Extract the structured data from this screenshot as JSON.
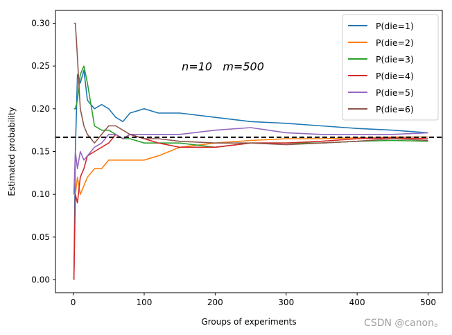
{
  "chart_data": {
    "type": "line",
    "xlabel": "Groups of experiments",
    "ylabel": "Estimated probability",
    "xlim": [
      -25,
      520
    ],
    "ylim": [
      -0.015,
      0.315
    ],
    "x_ticks": [
      0,
      100,
      200,
      300,
      400,
      500
    ],
    "y_ticks": [
      0.0,
      0.05,
      0.1,
      0.15,
      0.2,
      0.25,
      0.3
    ],
    "x_tick_labels": [
      "0",
      "100",
      "200",
      "300",
      "400",
      "500"
    ],
    "y_tick_labels": [
      "0.00",
      "0.05",
      "0.10",
      "0.15",
      "0.20",
      "0.25",
      "0.30"
    ],
    "reference_line": {
      "y": 0.1667,
      "style": "dashed",
      "color": "#000000"
    },
    "annotation": {
      "text": "n=10   m=500",
      "x": 150,
      "y": 0.245
    },
    "legend_position": "upper-right",
    "grid": false,
    "watermark": "CSDN @canon。",
    "series": [
      {
        "name": "P(die=1)",
        "color": "#1f77b4",
        "x": [
          1,
          3,
          6,
          10,
          15,
          20,
          30,
          40,
          50,
          60,
          70,
          80,
          100,
          120,
          150,
          200,
          250,
          300,
          350,
          400,
          450,
          500
        ],
        "y": [
          0.0,
          0.15,
          0.24,
          0.23,
          0.245,
          0.21,
          0.2,
          0.205,
          0.2,
          0.19,
          0.185,
          0.195,
          0.2,
          0.195,
          0.195,
          0.19,
          0.185,
          0.183,
          0.18,
          0.177,
          0.175,
          0.172
        ]
      },
      {
        "name": "P(die=2)",
        "color": "#ff7f0e",
        "x": [
          1,
          3,
          6,
          10,
          15,
          20,
          30,
          40,
          50,
          60,
          70,
          80,
          100,
          120,
          150,
          200,
          250,
          300,
          350,
          400,
          450,
          500
        ],
        "y": [
          0.1,
          0.1,
          0.12,
          0.1,
          0.11,
          0.12,
          0.13,
          0.13,
          0.14,
          0.14,
          0.14,
          0.14,
          0.14,
          0.145,
          0.155,
          0.16,
          0.163,
          0.165,
          0.165,
          0.166,
          0.167,
          0.167
        ]
      },
      {
        "name": "P(die=3)",
        "color": "#2ca02c",
        "x": [
          1,
          3,
          6,
          10,
          15,
          20,
          30,
          40,
          50,
          60,
          70,
          80,
          100,
          120,
          150,
          200,
          250,
          300,
          350,
          400,
          450,
          500
        ],
        "y": [
          0.2,
          0.2,
          0.21,
          0.24,
          0.25,
          0.23,
          0.18,
          0.175,
          0.175,
          0.17,
          0.165,
          0.165,
          0.16,
          0.16,
          0.16,
          0.155,
          0.16,
          0.16,
          0.16,
          0.162,
          0.163,
          0.162
        ]
      },
      {
        "name": "P(die=4)",
        "color": "#d62728",
        "x": [
          1,
          3,
          6,
          10,
          15,
          20,
          30,
          40,
          50,
          60,
          70,
          80,
          100,
          120,
          150,
          200,
          250,
          300,
          350,
          400,
          450,
          500
        ],
        "y": [
          0.0,
          0.1,
          0.09,
          0.12,
          0.13,
          0.145,
          0.15,
          0.155,
          0.16,
          0.17,
          0.165,
          0.17,
          0.165,
          0.16,
          0.155,
          0.155,
          0.16,
          0.16,
          0.162,
          0.165,
          0.166,
          0.165
        ]
      },
      {
        "name": "P(die=5)",
        "color": "#9467bd",
        "x": [
          1,
          3,
          6,
          10,
          15,
          20,
          30,
          40,
          50,
          60,
          70,
          80,
          100,
          120,
          150,
          200,
          250,
          300,
          350,
          400,
          450,
          500
        ],
        "y": [
          0.1,
          0.15,
          0.13,
          0.15,
          0.14,
          0.145,
          0.155,
          0.16,
          0.17,
          0.17,
          0.165,
          0.17,
          0.17,
          0.17,
          0.17,
          0.175,
          0.178,
          0.172,
          0.17,
          0.17,
          0.17,
          0.172
        ]
      },
      {
        "name": "P(die=6)",
        "color": "#8c564b",
        "x": [
          1,
          3,
          6,
          10,
          15,
          20,
          30,
          40,
          50,
          60,
          70,
          80,
          100,
          120,
          150,
          200,
          250,
          300,
          350,
          400,
          450,
          500
        ],
        "y": [
          0.3,
          0.3,
          0.26,
          0.2,
          0.18,
          0.17,
          0.16,
          0.17,
          0.18,
          0.18,
          0.175,
          0.17,
          0.165,
          0.165,
          0.162,
          0.16,
          0.16,
          0.158,
          0.16,
          0.162,
          0.165,
          0.163
        ]
      }
    ]
  }
}
